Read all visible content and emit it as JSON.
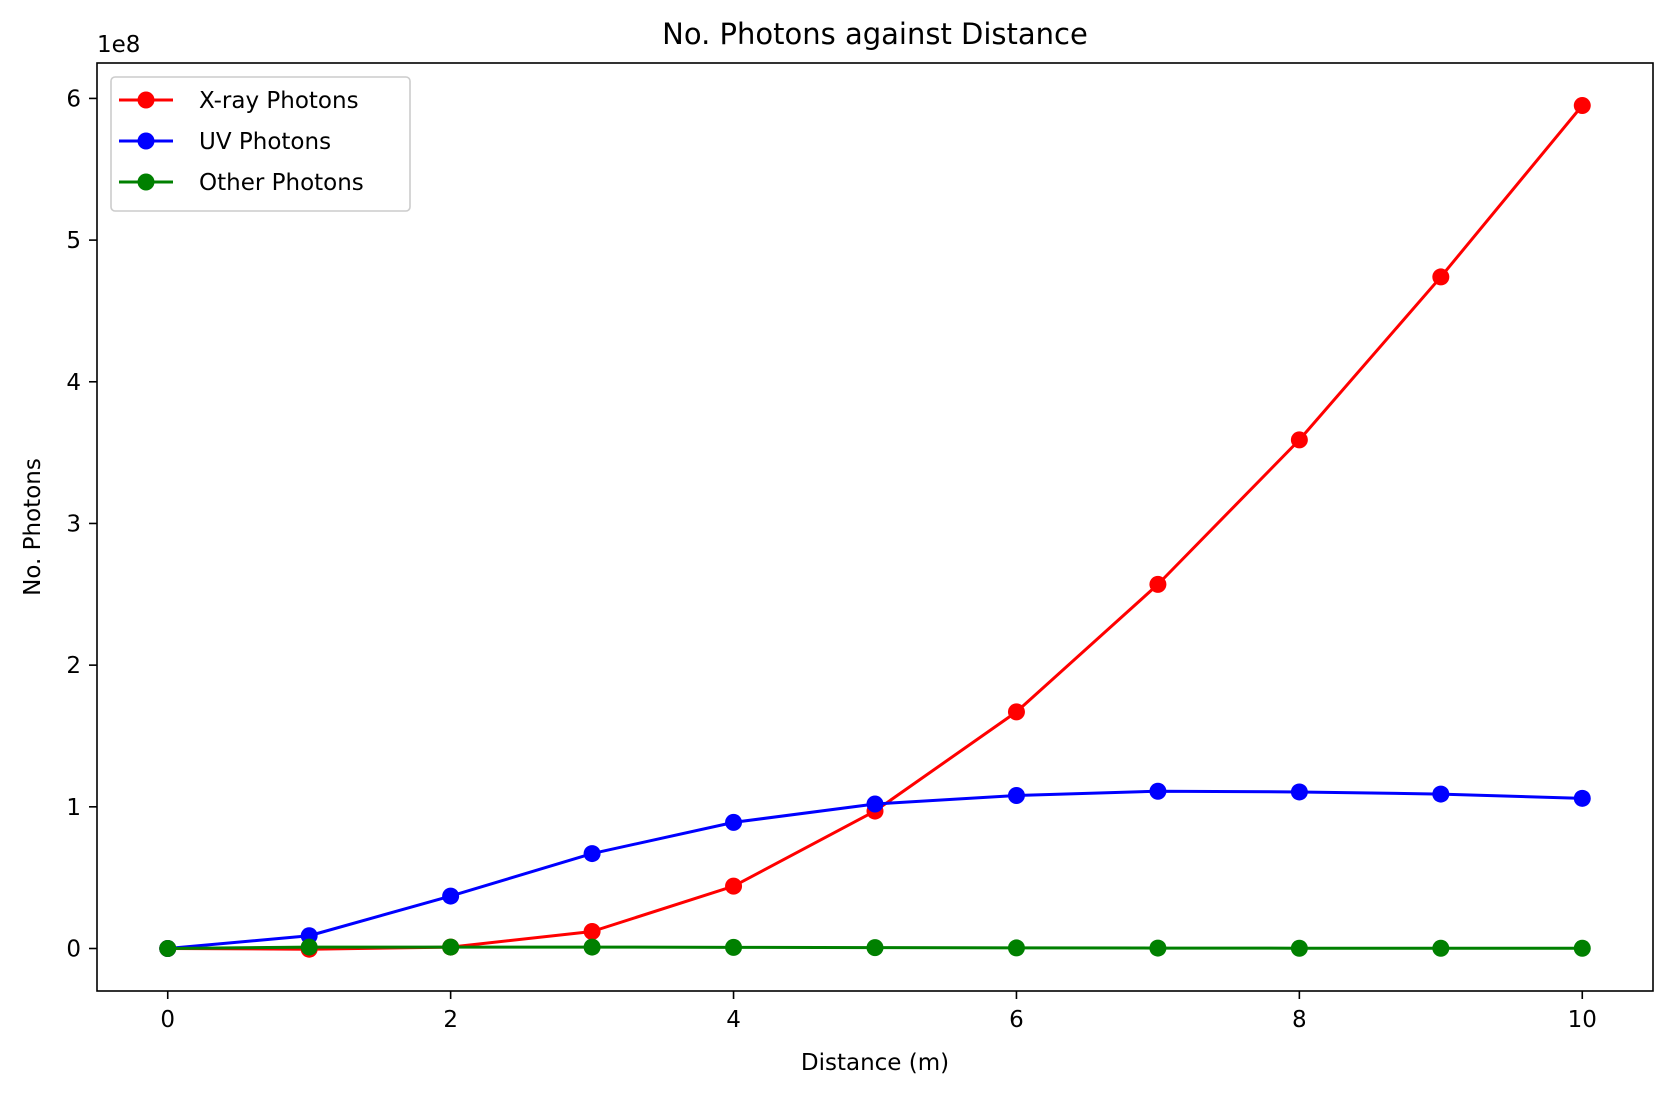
{
  "chart_data": {
    "type": "line",
    "title": "No. Photons against Distance",
    "xlabel": "Distance (m)",
    "ylabel": "No. Photons",
    "y_offset_label": "1e8",
    "xlim": [
      -0.5,
      10.5
    ],
    "ylim": [
      -0.3,
      6.25
    ],
    "y_scale_note": "values in units of 1e8",
    "grid": false,
    "legend_position": "upper-left",
    "x": [
      0,
      1,
      2,
      3,
      4,
      5,
      6,
      7,
      8,
      9,
      10
    ],
    "x_ticks": [
      0,
      2,
      4,
      6,
      8,
      10
    ],
    "x_tick_labels": [
      "0",
      "2",
      "4",
      "6",
      "8",
      "10"
    ],
    "y_ticks": [
      0,
      1,
      2,
      3,
      4,
      5,
      6
    ],
    "y_tick_labels": [
      "0",
      "1",
      "2",
      "3",
      "4",
      "5",
      "6"
    ],
    "series": [
      {
        "name": "X-ray Photons",
        "color": "#ff0000",
        "values": [
          0,
          -0.005,
          0.01,
          0.12,
          0.44,
          0.97,
          1.67,
          2.57,
          3.59,
          4.74,
          5.95
        ]
      },
      {
        "name": "UV Photons",
        "color": "#0000ff",
        "values": [
          0,
          0.09,
          0.37,
          0.67,
          0.89,
          1.02,
          1.08,
          1.11,
          1.105,
          1.09,
          1.06
        ]
      },
      {
        "name": "Other Photons",
        "color": "#008000",
        "values": [
          0,
          0.01,
          0.01,
          0.01,
          0.008,
          0.006,
          0.004,
          0.003,
          0.002,
          0.002,
          0.002
        ]
      }
    ]
  }
}
